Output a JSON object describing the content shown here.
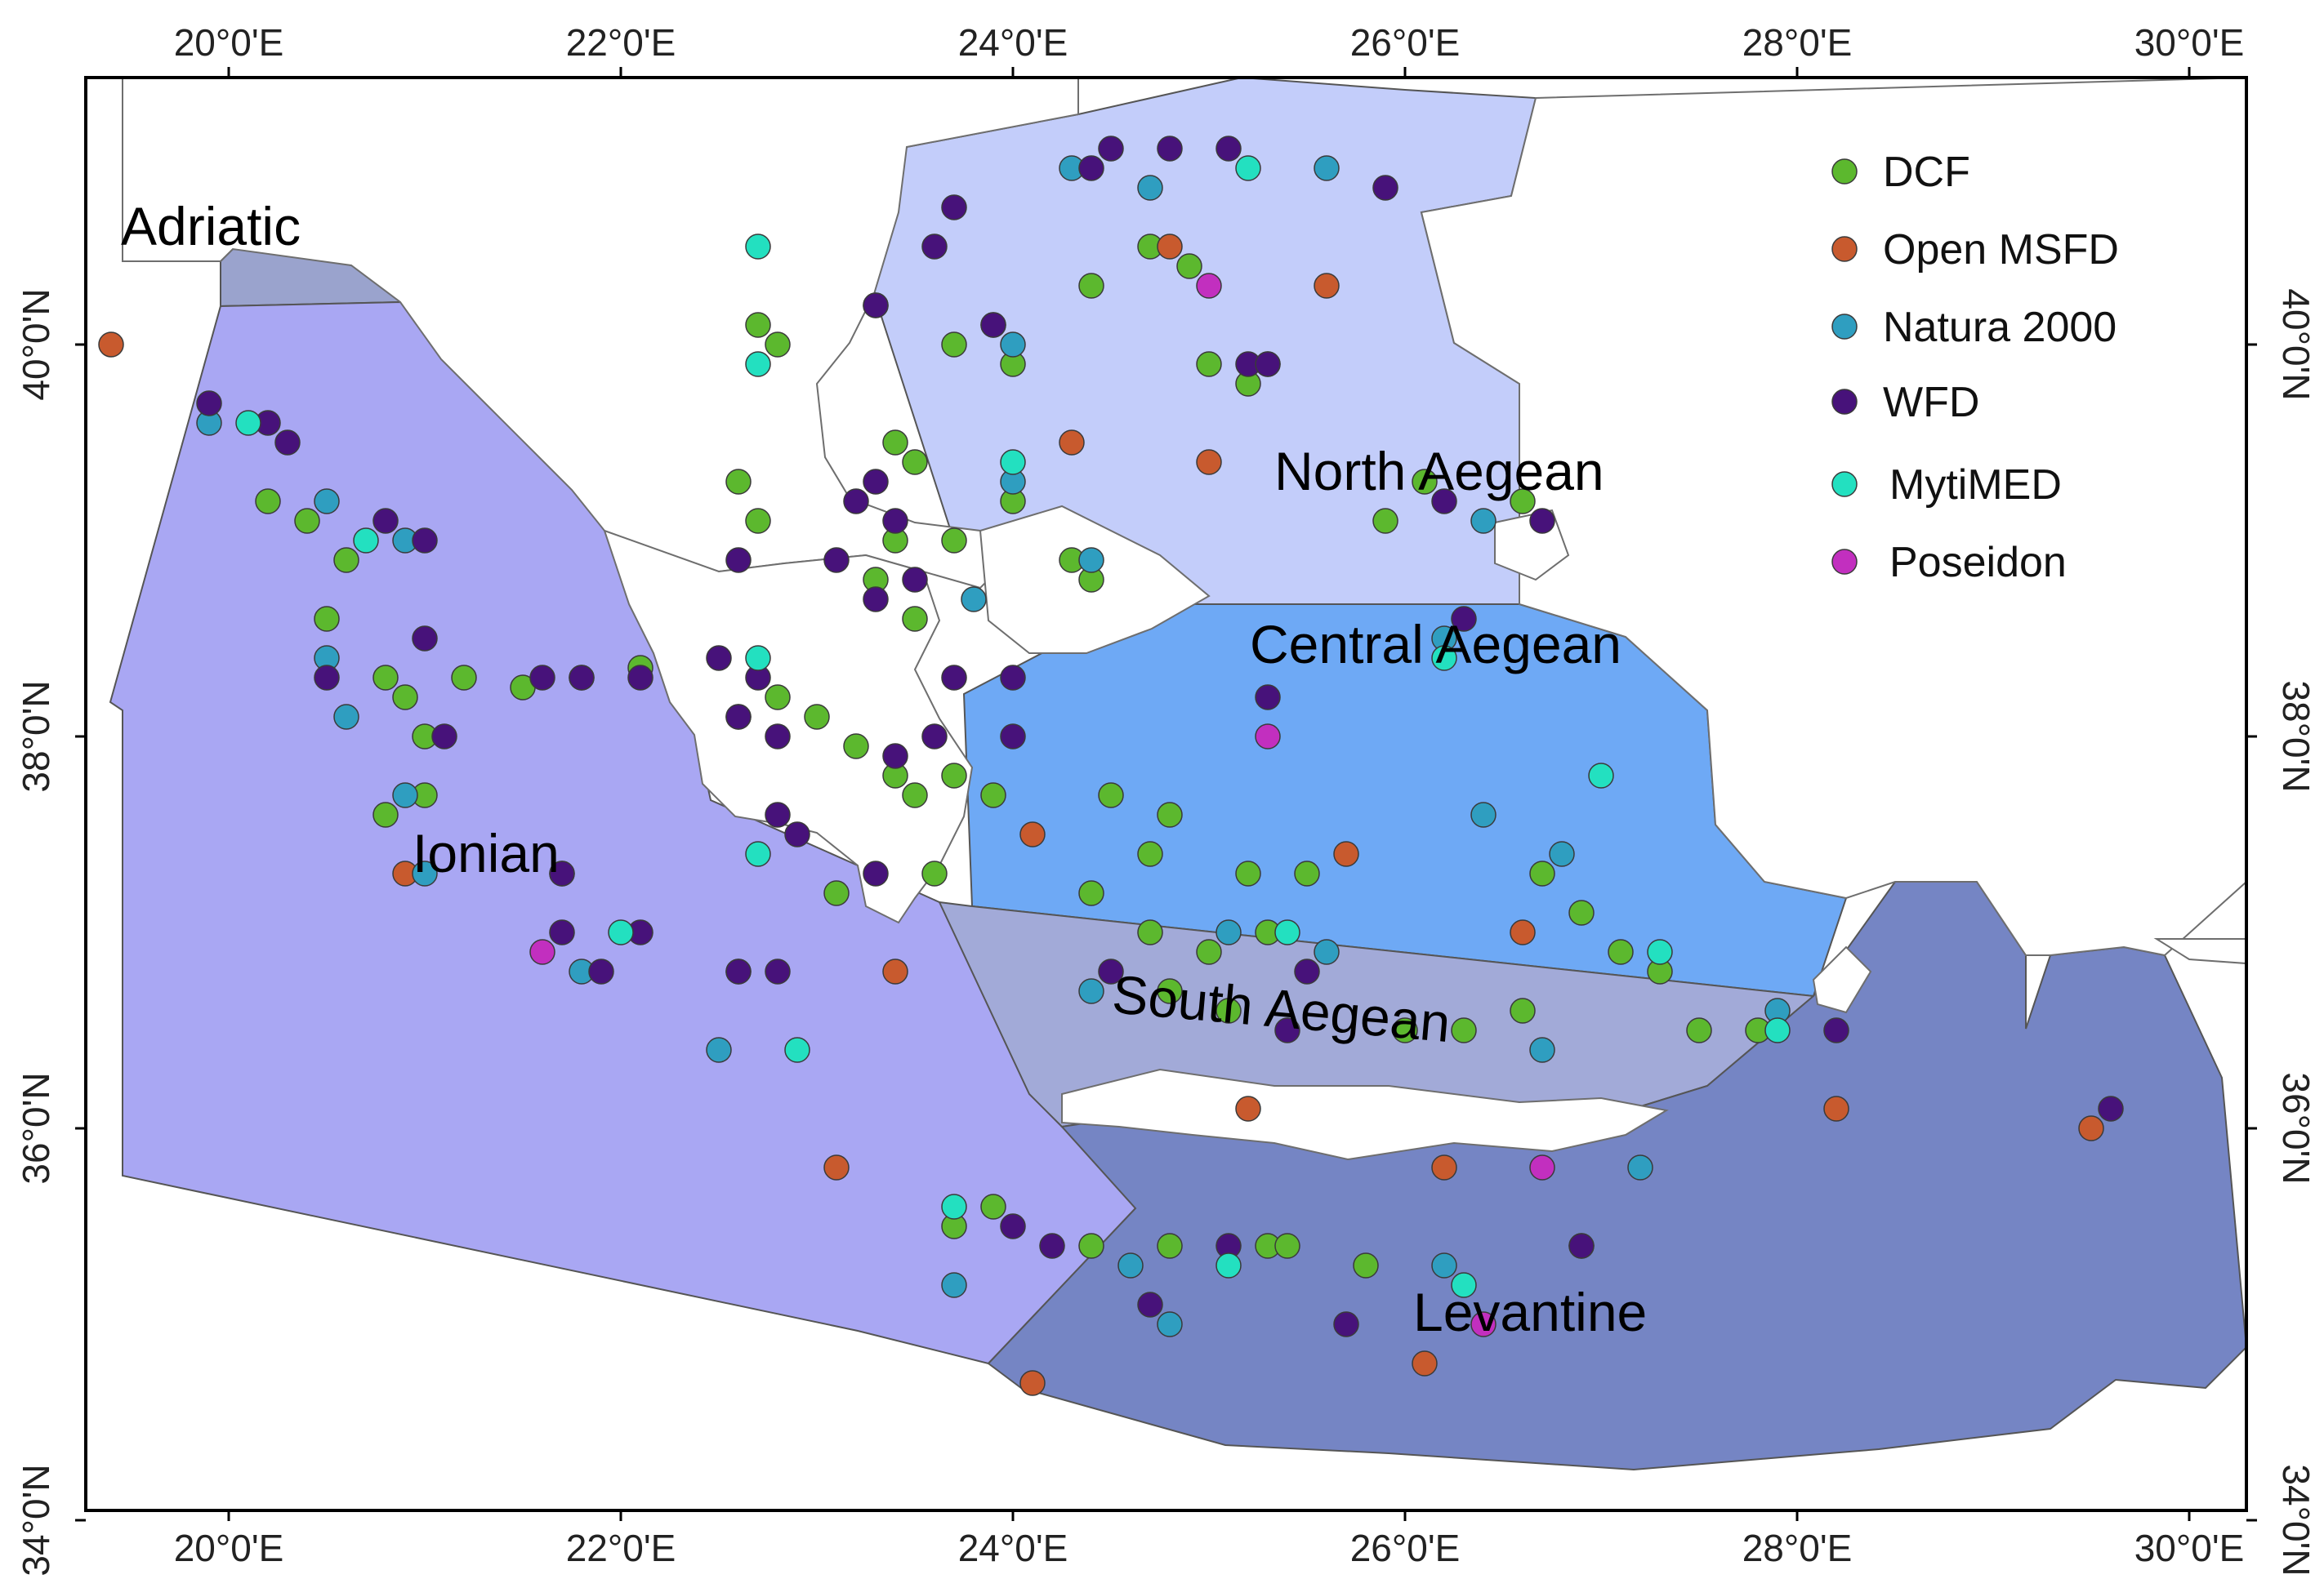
{
  "axes": {
    "x_ticks": [
      "20°0'E",
      "22°0'E",
      "24°0'E",
      "26°0'E",
      "28°0'E",
      "30°0'E"
    ],
    "y_ticks": [
      "40°0'N",
      "38°0'N",
      "36°0'N",
      "34°0'N"
    ]
  },
  "regions": [
    {
      "name": "Adriatic",
      "color": "#9aa3cd"
    },
    {
      "name": "Ionian",
      "color": "#a9a7f3"
    },
    {
      "name": "North Aegean",
      "color": "#c3cdfa"
    },
    {
      "name": "Central Aegean",
      "color": "#6ea9f5"
    },
    {
      "name": "South Aegean",
      "color": "#a2aad8"
    },
    {
      "name": "Levantine",
      "color": "#7585c4"
    }
  ],
  "legend": [
    {
      "label": "DCF",
      "color": "#5cb82e"
    },
    {
      "label": "Open MSFD",
      "color": "#c85a2e"
    },
    {
      "label": "Natura 2000",
      "color": "#2f9ec0"
    },
    {
      "label": "WFD",
      "color": "#47127a"
    },
    {
      "label": "MytiMED",
      "color": "#23e0c0"
    },
    {
      "label": "Poseidon",
      "color": "#c22fbf"
    }
  ],
  "sites": {
    "DCF": [
      [
        20.2,
        39.2
      ],
      [
        20.4,
        39.1
      ],
      [
        20.6,
        38.9
      ],
      [
        20.5,
        38.6
      ],
      [
        20.8,
        38.3
      ],
      [
        20.9,
        38.2
      ],
      [
        21.2,
        38.3
      ],
      [
        21.5,
        38.25
      ],
      [
        21.8,
        38.3
      ],
      [
        22.1,
        38.35
      ],
      [
        21.0,
        38.0
      ],
      [
        20.8,
        37.6
      ],
      [
        21.0,
        37.7
      ],
      [
        22.6,
        38.1
      ],
      [
        22.8,
        38.2
      ],
      [
        23.0,
        38.1
      ],
      [
        23.2,
        37.95
      ],
      [
        23.4,
        37.8
      ],
      [
        23.5,
        37.7
      ],
      [
        23.7,
        37.8
      ],
      [
        23.9,
        37.7
      ],
      [
        23.6,
        37.3
      ],
      [
        23.1,
        37.2
      ],
      [
        22.7,
        40.1
      ],
      [
        22.8,
        40.0
      ],
      [
        23.3,
        40.2
      ],
      [
        23.7,
        40.0
      ],
      [
        24.0,
        39.9
      ],
      [
        24.4,
        40.3
      ],
      [
        24.7,
        40.5
      ],
      [
        24.9,
        40.4
      ],
      [
        25.0,
        39.9
      ],
      [
        25.2,
        39.8
      ],
      [
        23.4,
        39.5
      ],
      [
        23.5,
        39.4
      ],
      [
        23.4,
        39.0
      ],
      [
        23.7,
        39.0
      ],
      [
        24.0,
        39.2
      ],
      [
        24.3,
        38.9
      ],
      [
        24.4,
        38.8
      ],
      [
        23.3,
        38.8
      ],
      [
        23.5,
        38.6
      ],
      [
        24.5,
        37.7
      ],
      [
        24.8,
        37.6
      ],
      [
        24.7,
        37.4
      ],
      [
        25.2,
        37.3
      ],
      [
        25.5,
        37.3
      ],
      [
        24.4,
        37.2
      ],
      [
        24.7,
        37.0
      ],
      [
        25.0,
        36.9
      ],
      [
        25.3,
        37.0
      ],
      [
        24.8,
        36.7
      ],
      [
        25.1,
        36.6
      ],
      [
        26.0,
        36.5
      ],
      [
        26.3,
        36.5
      ],
      [
        26.6,
        36.6
      ],
      [
        26.7,
        37.3
      ],
      [
        26.9,
        37.1
      ],
      [
        27.1,
        36.9
      ],
      [
        27.3,
        36.8
      ],
      [
        27.5,
        36.5
      ],
      [
        27.8,
        36.5
      ],
      [
        26.1,
        39.3
      ],
      [
        26.6,
        39.2
      ],
      [
        25.9,
        39.1
      ],
      [
        25.3,
        35.4
      ],
      [
        25.4,
        35.4
      ],
      [
        25.8,
        35.3
      ],
      [
        24.4,
        35.4
      ],
      [
        24.8,
        35.4
      ],
      [
        23.7,
        35.5
      ],
      [
        23.9,
        35.6
      ],
      [
        22.7,
        39.1
      ],
      [
        22.6,
        39.3
      ]
    ],
    "Open MSFD": [
      [
        19.4,
        40.0
      ],
      [
        20.9,
        37.3
      ],
      [
        23.4,
        36.8
      ],
      [
        24.1,
        37.5
      ],
      [
        25.7,
        37.4
      ],
      [
        26.6,
        37.0
      ],
      [
        24.3,
        39.5
      ],
      [
        25.0,
        39.4
      ],
      [
        24.8,
        40.5
      ],
      [
        25.6,
        40.3
      ],
      [
        25.2,
        36.1
      ],
      [
        26.2,
        35.8
      ],
      [
        23.1,
        35.8
      ],
      [
        28.2,
        36.1
      ],
      [
        29.5,
        36.0
      ],
      [
        26.1,
        34.8
      ],
      [
        24.1,
        34.7
      ]
    ],
    "Natura 2000": [
      [
        19.9,
        39.6
      ],
      [
        20.5,
        39.2
      ],
      [
        20.9,
        39.0
      ],
      [
        20.5,
        38.4
      ],
      [
        20.6,
        38.1
      ],
      [
        20.9,
        37.7
      ],
      [
        21.0,
        37.3
      ],
      [
        21.7,
        37.3
      ],
      [
        21.8,
        36.8
      ],
      [
        22.5,
        36.4
      ],
      [
        22.6,
        36.8
      ],
      [
        23.9,
        40.1
      ],
      [
        24.0,
        40.0
      ],
      [
        24.3,
        40.9
      ],
      [
        24.7,
        40.8
      ],
      [
        25.6,
        40.9
      ],
      [
        25.3,
        39.9
      ],
      [
        24.0,
        39.3
      ],
      [
        23.8,
        38.7
      ],
      [
        24.4,
        38.9
      ],
      [
        26.2,
        38.5
      ],
      [
        26.4,
        39.1
      ],
      [
        26.4,
        37.6
      ],
      [
        26.8,
        37.4
      ],
      [
        25.6,
        36.9
      ],
      [
        25.1,
        37.0
      ],
      [
        24.4,
        36.7
      ],
      [
        26.7,
        36.4
      ],
      [
        27.9,
        36.6
      ],
      [
        27.2,
        35.8
      ],
      [
        26.9,
        35.4
      ],
      [
        26.2,
        35.3
      ],
      [
        24.6,
        35.3
      ],
      [
        24.8,
        35.0
      ],
      [
        23.7,
        35.2
      ]
    ],
    "WFD": [
      [
        19.9,
        39.7
      ],
      [
        20.2,
        39.6
      ],
      [
        20.3,
        39.5
      ],
      [
        20.8,
        39.1
      ],
      [
        21.0,
        39.0
      ],
      [
        21.0,
        38.5
      ],
      [
        20.5,
        38.3
      ],
      [
        21.1,
        38.0
      ],
      [
        21.6,
        38.3
      ],
      [
        21.8,
        38.3
      ],
      [
        22.1,
        38.3
      ],
      [
        22.5,
        38.4
      ],
      [
        22.7,
        38.3
      ],
      [
        22.6,
        38.1
      ],
      [
        22.8,
        38.0
      ],
      [
        23.3,
        39.3
      ],
      [
        23.2,
        39.2
      ],
      [
        23.4,
        39.1
      ],
      [
        23.1,
        38.9
      ],
      [
        22.6,
        38.9
      ],
      [
        23.3,
        38.7
      ],
      [
        23.5,
        38.8
      ],
      [
        23.7,
        38.3
      ],
      [
        24.0,
        38.3
      ],
      [
        23.4,
        37.9
      ],
      [
        23.6,
        38.0
      ],
      [
        24.0,
        38.0
      ],
      [
        22.8,
        37.6
      ],
      [
        22.9,
        37.5
      ],
      [
        23.3,
        37.3
      ],
      [
        21.7,
        37.3
      ],
      [
        21.7,
        37.0
      ],
      [
        21.9,
        36.8
      ],
      [
        22.1,
        37.0
      ],
      [
        22.6,
        36.8
      ],
      [
        22.8,
        36.8
      ],
      [
        23.6,
        40.5
      ],
      [
        23.7,
        40.7
      ],
      [
        24.4,
        40.9
      ],
      [
        24.5,
        41.0
      ],
      [
        24.8,
        41.0
      ],
      [
        25.1,
        41.0
      ],
      [
        25.9,
        40.8
      ],
      [
        23.3,
        40.2
      ],
      [
        23.9,
        40.1
      ],
      [
        25.2,
        39.9
      ],
      [
        25.3,
        39.9
      ],
      [
        26.2,
        39.2
      ],
      [
        26.7,
        39.1
      ],
      [
        25.3,
        38.2
      ],
      [
        26.3,
        38.6
      ],
      [
        24.5,
        36.8
      ],
      [
        25.5,
        36.8
      ],
      [
        25.4,
        36.5
      ],
      [
        28.2,
        36.5
      ],
      [
        29.6,
        36.1
      ],
      [
        24.0,
        35.5
      ],
      [
        24.2,
        35.4
      ],
      [
        25.1,
        35.4
      ],
      [
        25.7,
        35.0
      ],
      [
        24.7,
        35.1
      ],
      [
        26.9,
        35.4
      ]
    ],
    "MytiMED": [
      [
        20.1,
        39.6
      ],
      [
        20.7,
        39.0
      ],
      [
        22.7,
        38.4
      ],
      [
        22.7,
        37.4
      ],
      [
        22.0,
        37.0
      ],
      [
        22.9,
        36.4
      ],
      [
        22.7,
        40.5
      ],
      [
        22.7,
        39.9
      ],
      [
        24.0,
        39.4
      ],
      [
        25.2,
        40.9
      ],
      [
        26.2,
        38.4
      ],
      [
        27.0,
        37.8
      ],
      [
        25.4,
        37.0
      ],
      [
        27.3,
        36.9
      ],
      [
        27.9,
        36.5
      ],
      [
        23.7,
        35.6
      ],
      [
        25.1,
        35.3
      ],
      [
        26.3,
        35.2
      ]
    ],
    "Poseidon": [
      [
        21.6,
        36.9
      ],
      [
        25.0,
        40.3
      ],
      [
        25.3,
        38.0
      ],
      [
        26.7,
        35.8
      ],
      [
        26.4,
        35.0
      ]
    ]
  }
}
